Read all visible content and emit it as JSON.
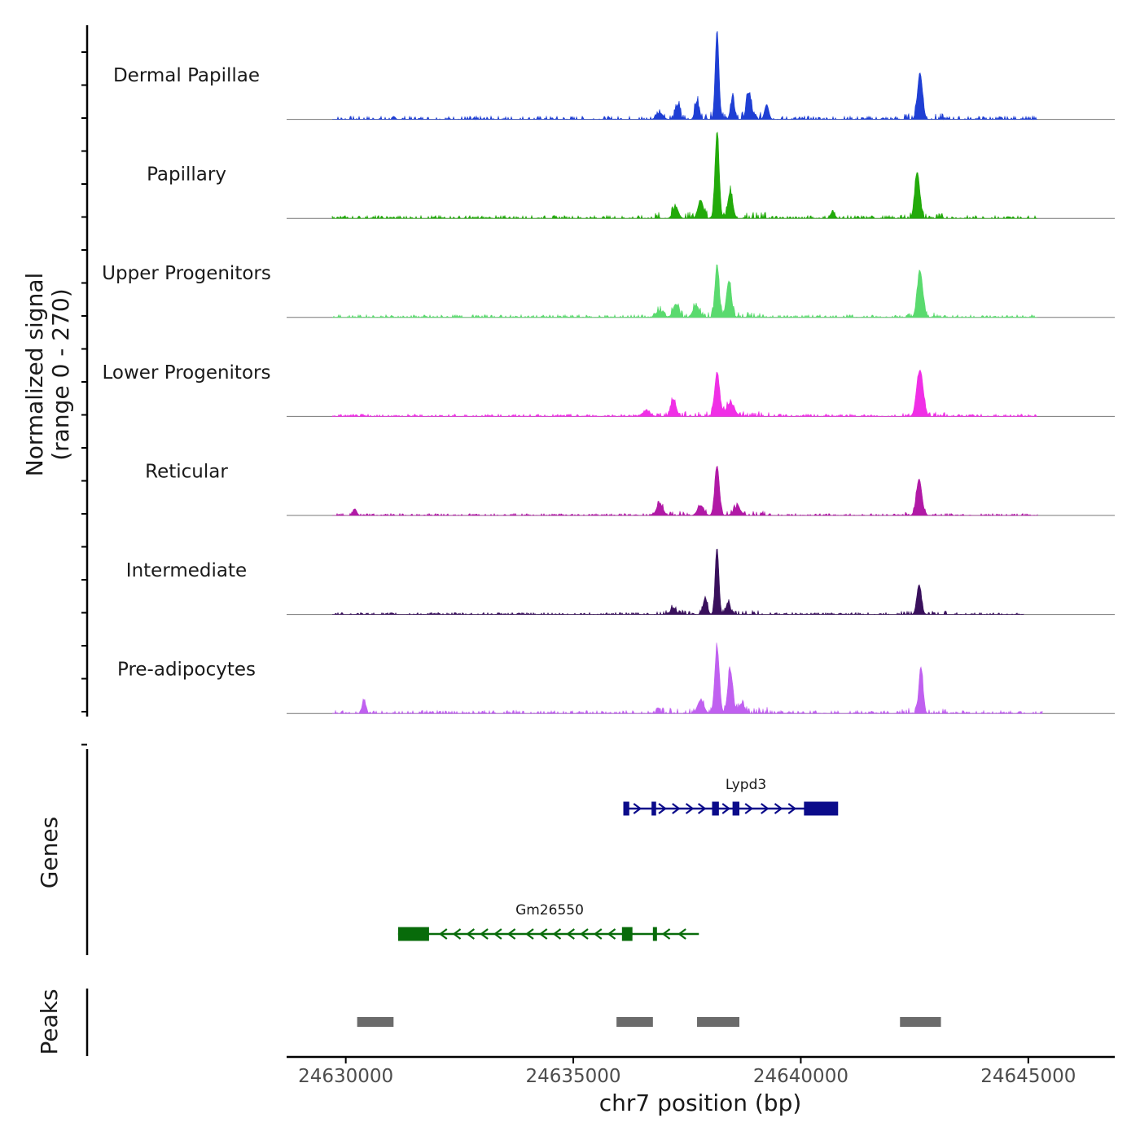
{
  "chart_data": {
    "type": "area",
    "title": "",
    "ylabel_line1": "Normalized signal",
    "ylabel_line2": "(range 0 - 270)",
    "y_range": [
      0,
      270
    ],
    "xlabel": "chr7 position (bp)",
    "xlim": [
      24628700,
      24646900
    ],
    "x_ticks": [
      24630000,
      24635000,
      24640000,
      24645000
    ],
    "x_tick_labels": [
      "24630000",
      "24635000",
      "24640000",
      "24645000"
    ],
    "tracks": [
      {
        "name": "Dermal Papillae",
        "color": "#1f3fd4",
        "peaks": [
          {
            "x": 24638160,
            "y": 270,
            "w": 40
          },
          {
            "x": 24642620,
            "y": 140,
            "w": 55
          },
          {
            "x": 24638860,
            "y": 80,
            "w": 55
          },
          {
            "x": 24639250,
            "y": 45,
            "w": 45
          },
          {
            "x": 24638500,
            "y": 60,
            "w": 45
          },
          {
            "x": 24637720,
            "y": 55,
            "w": 45
          },
          {
            "x": 24637300,
            "y": 45,
            "w": 45
          },
          {
            "x": 24636900,
            "y": 20,
            "w": 70
          }
        ],
        "noise": 10,
        "extent": [
          24629700,
          24645200
        ]
      },
      {
        "name": "Papillary",
        "color": "#22aa0a",
        "peaks": [
          {
            "x": 24638160,
            "y": 260,
            "w": 45
          },
          {
            "x": 24642560,
            "y": 140,
            "w": 55
          },
          {
            "x": 24638450,
            "y": 80,
            "w": 55
          },
          {
            "x": 24637800,
            "y": 55,
            "w": 60
          },
          {
            "x": 24637250,
            "y": 35,
            "w": 60
          },
          {
            "x": 24640700,
            "y": 20,
            "w": 45
          }
        ],
        "noise": 9,
        "extent": [
          24629700,
          24645200
        ]
      },
      {
        "name": "Upper Progenitors",
        "color": "#5ada6e",
        "peaks": [
          {
            "x": 24638160,
            "y": 160,
            "w": 45
          },
          {
            "x": 24638420,
            "y": 110,
            "w": 55
          },
          {
            "x": 24642620,
            "y": 140,
            "w": 60
          },
          {
            "x": 24637250,
            "y": 40,
            "w": 60
          },
          {
            "x": 24637700,
            "y": 35,
            "w": 70
          },
          {
            "x": 24636900,
            "y": 20,
            "w": 80
          }
        ],
        "noise": 8,
        "extent": [
          24629700,
          24645200
        ]
      },
      {
        "name": "Lower Progenitors",
        "color": "#f02fe6",
        "peaks": [
          {
            "x": 24638160,
            "y": 130,
            "w": 55
          },
          {
            "x": 24642620,
            "y": 140,
            "w": 70
          },
          {
            "x": 24637200,
            "y": 50,
            "w": 60
          },
          {
            "x": 24638450,
            "y": 40,
            "w": 90
          },
          {
            "x": 24636600,
            "y": 15,
            "w": 90
          }
        ],
        "noise": 7,
        "extent": [
          24629700,
          24645200
        ]
      },
      {
        "name": "Reticular",
        "color": "#b119a6",
        "peaks": [
          {
            "x": 24638160,
            "y": 150,
            "w": 50
          },
          {
            "x": 24642600,
            "y": 110,
            "w": 60
          },
          {
            "x": 24636900,
            "y": 35,
            "w": 70
          },
          {
            "x": 24637800,
            "y": 30,
            "w": 70
          },
          {
            "x": 24638600,
            "y": 25,
            "w": 80
          },
          {
            "x": 24630200,
            "y": 20,
            "w": 40
          }
        ],
        "noise": 6,
        "extent": [
          24629700,
          24645200
        ]
      },
      {
        "name": "Intermediate",
        "color": "#39105c",
        "peaks": [
          {
            "x": 24638160,
            "y": 200,
            "w": 40
          },
          {
            "x": 24642600,
            "y": 90,
            "w": 50
          },
          {
            "x": 24637900,
            "y": 50,
            "w": 45
          },
          {
            "x": 24638400,
            "y": 35,
            "w": 45
          },
          {
            "x": 24637200,
            "y": 20,
            "w": 60
          }
        ],
        "noise": 6,
        "extent": [
          24629700,
          24644900
        ]
      },
      {
        "name": "Pre-adipocytes",
        "color": "#c060f0",
        "peaks": [
          {
            "x": 24638160,
            "y": 200,
            "w": 50
          },
          {
            "x": 24638450,
            "y": 130,
            "w": 55
          },
          {
            "x": 24642640,
            "y": 140,
            "w": 45
          },
          {
            "x": 24637800,
            "y": 40,
            "w": 70
          },
          {
            "x": 24630400,
            "y": 40,
            "w": 40
          },
          {
            "x": 24638700,
            "y": 30,
            "w": 60
          }
        ],
        "noise": 9,
        "extent": [
          24629700,
          24645300
        ]
      }
    ],
    "genes": [
      {
        "name": "Lypd3",
        "color": "#0b0b8a",
        "start": 24636100,
        "end": 24640800,
        "strand": "+",
        "exons": [
          [
            24636100,
            24636230
          ],
          [
            24636720,
            24636820
          ],
          [
            24638050,
            24638200
          ],
          [
            24638500,
            24638650
          ],
          [
            24640070,
            24640820
          ]
        ],
        "arrows": [
          24636400,
          24636950,
          24637250,
          24637550,
          24637820,
          24638350,
          24638850,
          24639200,
          24639500,
          24639800
        ]
      },
      {
        "name": "Gm26550",
        "color": "#086b0a",
        "start": 24631150,
        "end": 24637760,
        "strand": "-",
        "exons": [
          [
            24631150,
            24631830
          ],
          [
            24636070,
            24636300
          ],
          [
            24636750,
            24636820
          ]
        ],
        "arrows": [
          24632150,
          24632450,
          24632750,
          24633050,
          24633350,
          24633650,
          24634050,
          24634350,
          24634650,
          24634950,
          24635250,
          24635550,
          24635850,
          24637050,
          24637400
        ]
      }
    ],
    "peaks": [
      [
        24630250,
        24631050
      ],
      [
        24635950,
        24636750
      ],
      [
        24637720,
        24638650
      ],
      [
        24642180,
        24643080
      ]
    ],
    "peak_color": "#6b6b6b",
    "panel_labels": {
      "genes": "Genes",
      "peaks": "Peaks"
    }
  }
}
